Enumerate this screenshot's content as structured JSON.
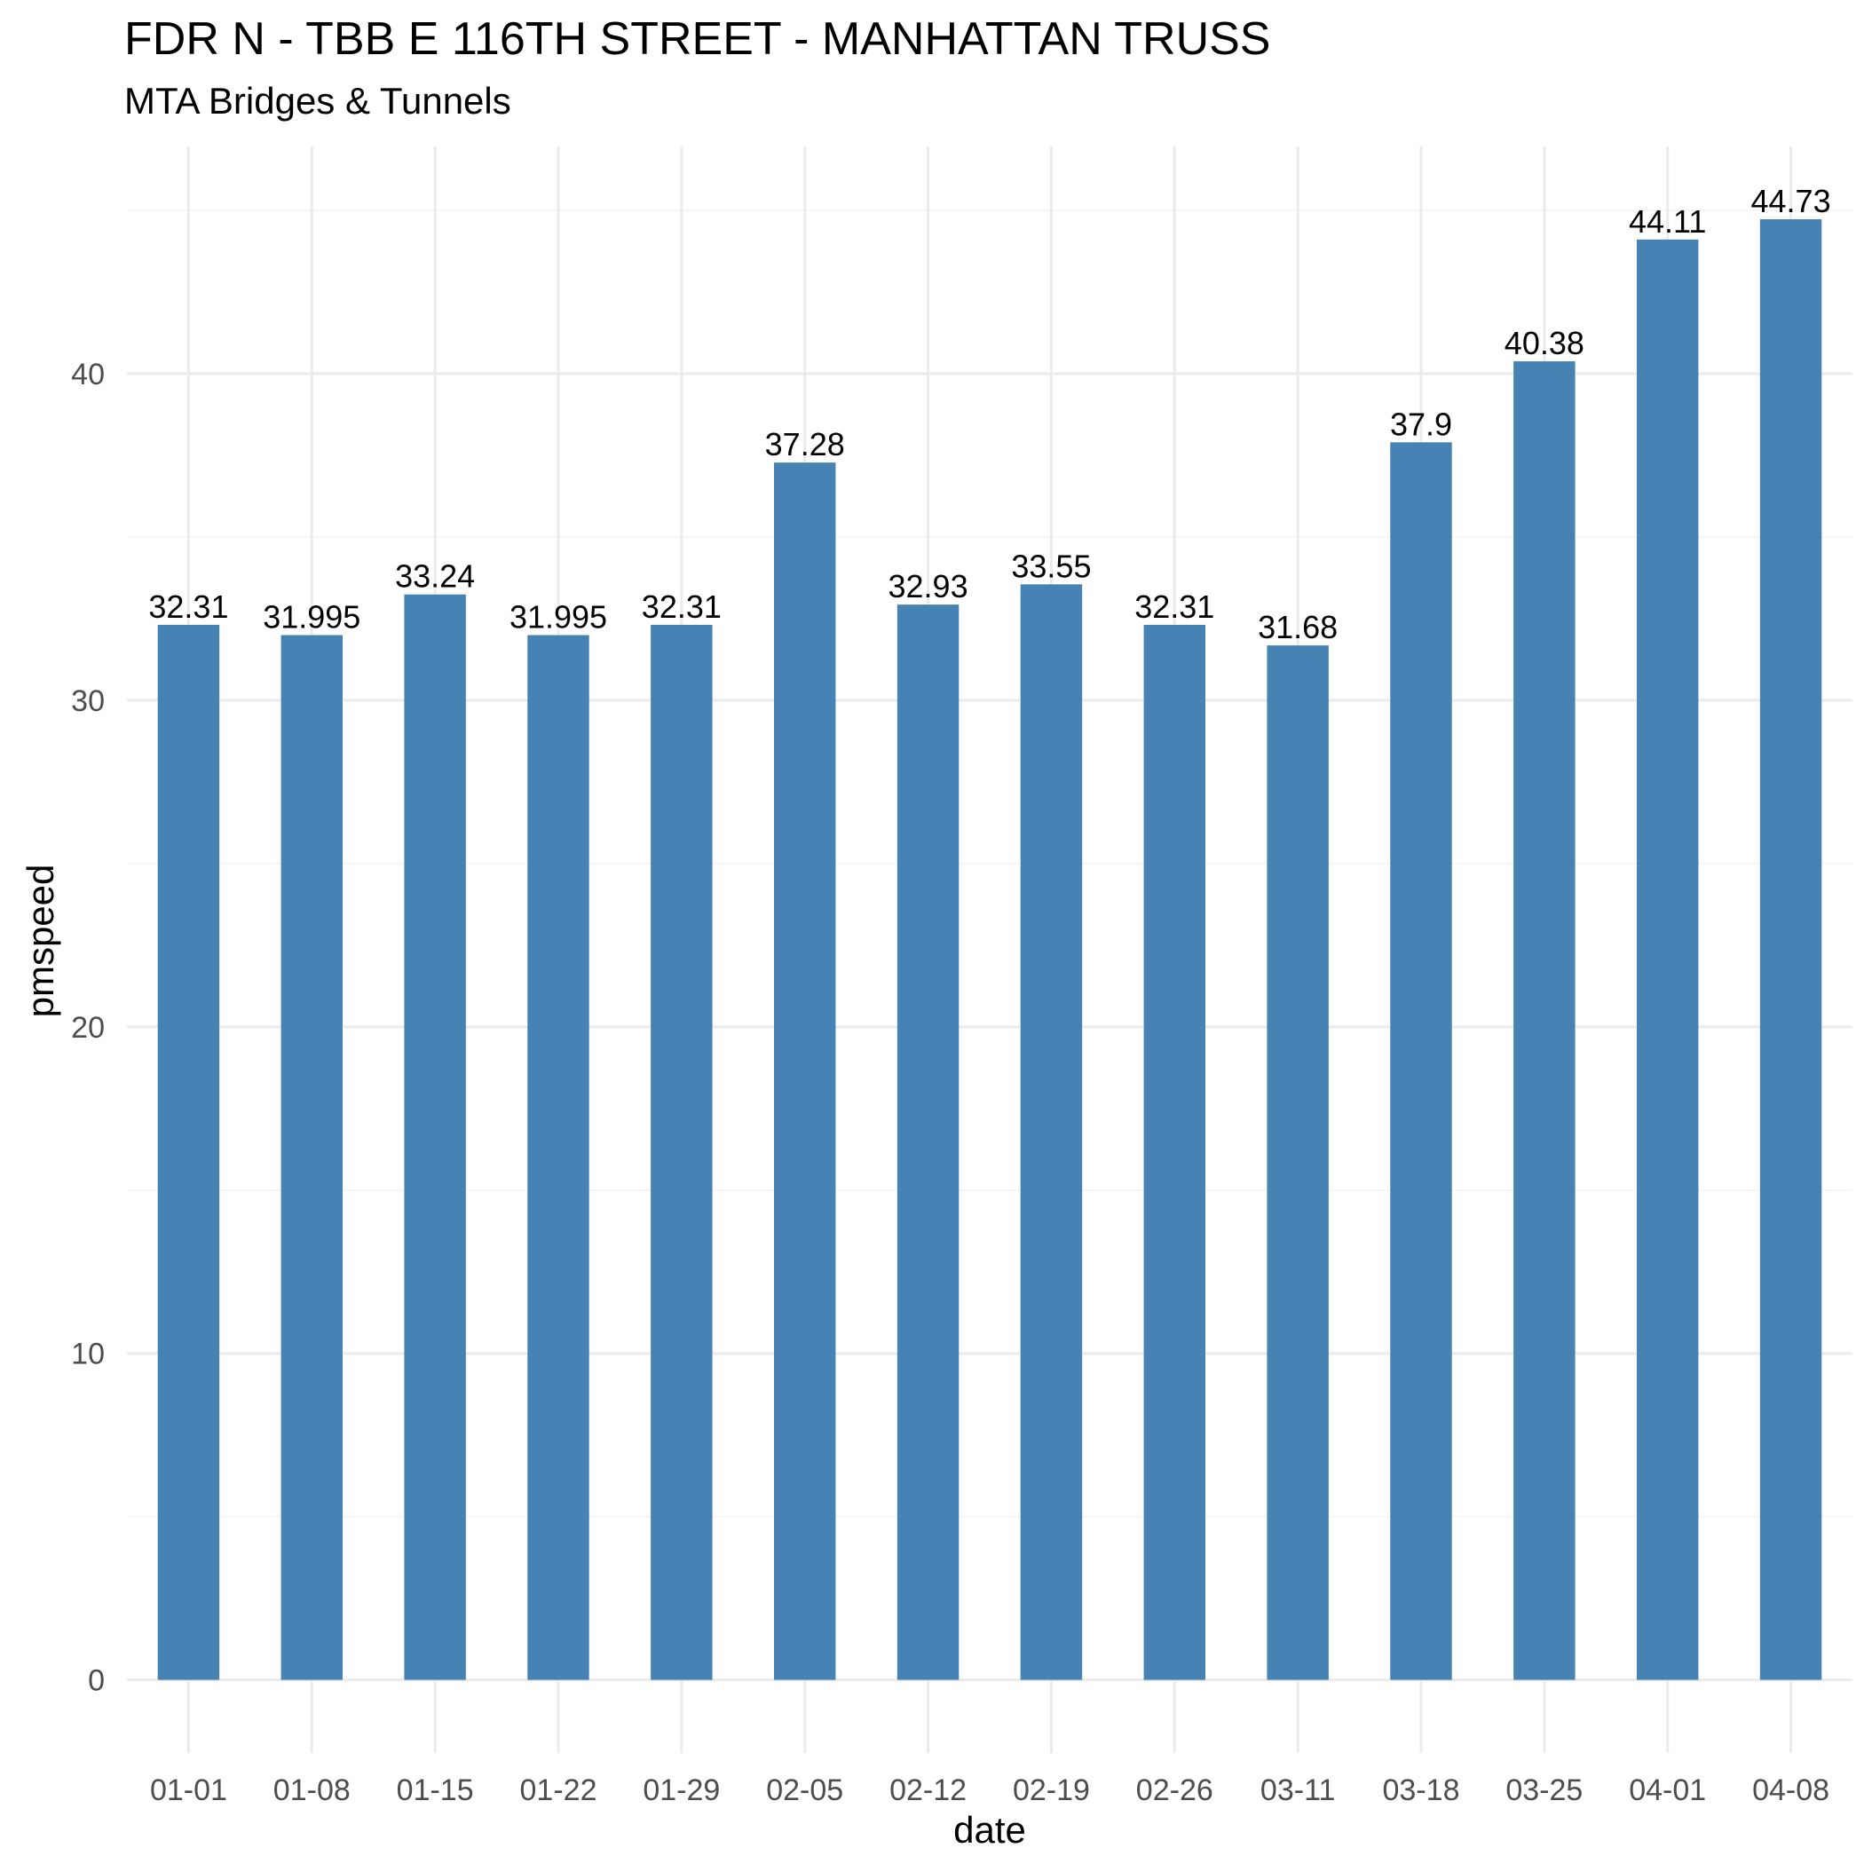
{
  "chart_data": {
    "type": "bar",
    "title": "FDR N - TBB E 116TH STREET - MANHATTAN TRUSS",
    "subtitle": "MTA Bridges & Tunnels",
    "xlabel": "date",
    "ylabel": "pmspeed",
    "categories": [
      "01-01",
      "01-08",
      "01-15",
      "01-22",
      "01-29",
      "02-05",
      "02-12",
      "02-19",
      "02-26",
      "03-11",
      "03-18",
      "03-25",
      "04-01",
      "04-08"
    ],
    "values": [
      32.31,
      31.995,
      33.24,
      31.995,
      32.31,
      37.28,
      32.93,
      33.55,
      32.31,
      31.68,
      37.9,
      40.38,
      44.11,
      44.73
    ],
    "labels": [
      "32.31",
      "31.995",
      "33.24",
      "31.995",
      "32.31",
      "37.28",
      "32.93",
      "33.55",
      "32.31",
      "31.68",
      "37.9",
      "40.38",
      "44.11",
      "44.73"
    ],
    "y_ticks": [
      0,
      10,
      20,
      30,
      40
    ],
    "ylim": [
      -2.24,
      46.96
    ],
    "grid": true,
    "bar_color": "#4682B4"
  }
}
